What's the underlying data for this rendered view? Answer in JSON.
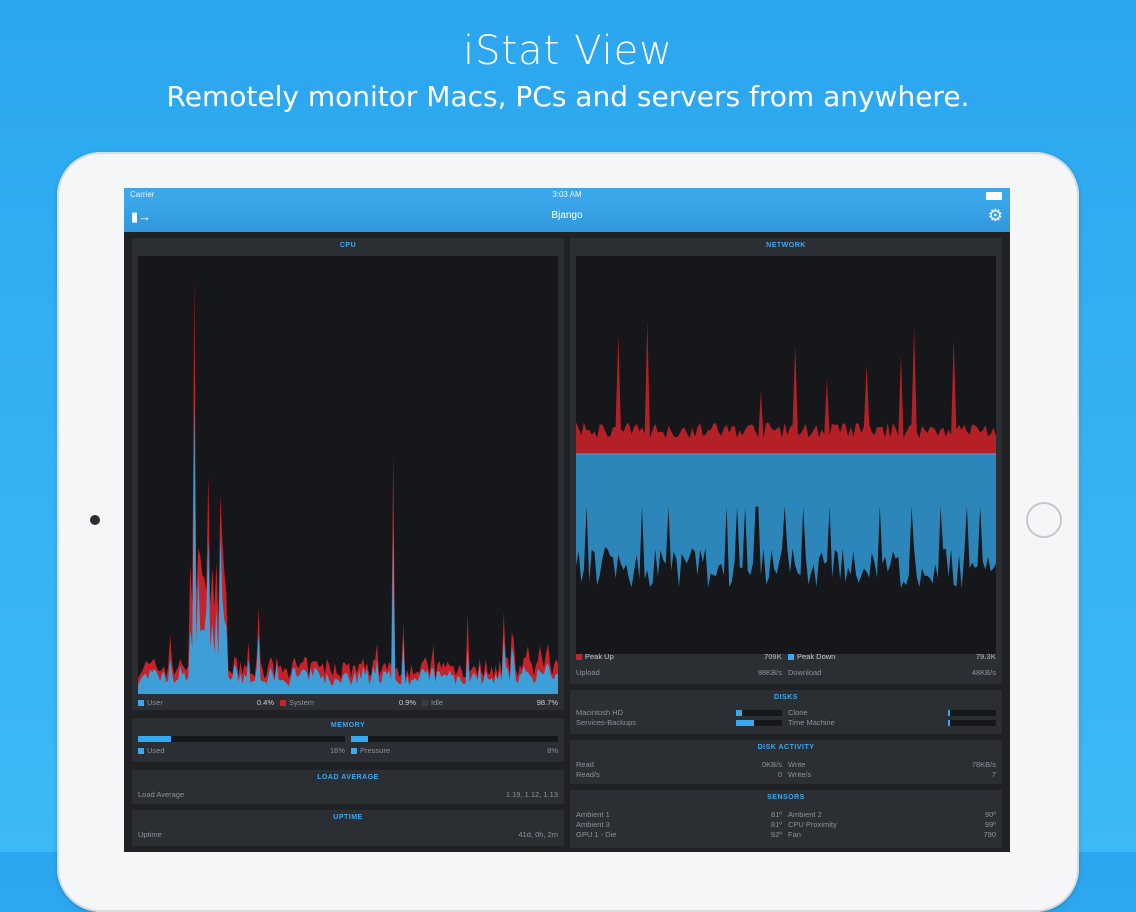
{
  "marketing": {
    "title": "iStat View",
    "subtitle": "Remotely monitor Macs, PCs and servers from anywhere."
  },
  "status_bar": {
    "carrier": "Carrier",
    "time": "3:03 AM"
  },
  "nav": {
    "title": "Bjango",
    "left_icon": "sidebar-toggle-icon",
    "right_icon": "gear-icon"
  },
  "colors": {
    "accent": "#3aa9f0",
    "red": "#c8212a",
    "blue": "#3aa9f0"
  },
  "cpu": {
    "title": "CPU",
    "legend": [
      {
        "label": "User",
        "value": "0.4%",
        "color": "#3aa9f0"
      },
      {
        "label": "System",
        "value": "0.9%",
        "color": "#c8212a"
      },
      {
        "label": "Idle",
        "value": "98.7%",
        "color": "#3a3d42"
      }
    ]
  },
  "memory": {
    "title": "MEMORY",
    "used": {
      "label": "Used",
      "value": "16%",
      "fraction": 0.16
    },
    "pressure": {
      "label": "Pressure",
      "value": "8%",
      "fraction": 0.08
    }
  },
  "load_average": {
    "title": "LOAD AVERAGE",
    "label": "Load Average",
    "value": "1.19, 1.12, 1.13"
  },
  "uptime": {
    "title": "UPTIME",
    "label": "Uptime",
    "value": "41d, 0h, 2m"
  },
  "network": {
    "title": "NETWORK",
    "peak_up_label": "Peak Up",
    "peak_up_value": "709K",
    "peak_down_label": "Peak Down",
    "peak_down_value": "79.3K",
    "upload_label": "Upload",
    "upload_value": "98KB/s",
    "download_label": "Download",
    "download_value": "48KB/s"
  },
  "disks": {
    "title": "DISKS",
    "items": [
      {
        "name": "Macintosh HD",
        "fraction": 0.12
      },
      {
        "name": "Services-Backups",
        "fraction": 0.4
      },
      {
        "name": "Clone",
        "fraction": 0.05
      },
      {
        "name": "Time Machine",
        "fraction": 0.05
      }
    ]
  },
  "disk_activity": {
    "title": "DISK ACTIVITY",
    "read_label": "Read",
    "read_value": "0KB/s",
    "reads_label": "Read/s",
    "reads_value": "0",
    "write_label": "Write",
    "write_value": "78KB/s",
    "writes_label": "Write/s",
    "writes_value": "7"
  },
  "sensors": {
    "title": "SENSORS",
    "left": [
      {
        "label": "Ambient 1",
        "value": "81º"
      },
      {
        "label": "Ambient 3",
        "value": "81º"
      },
      {
        "label": "GPU 1 - Die",
        "value": "92º"
      }
    ],
    "right": [
      {
        "label": "Ambient 2",
        "value": "90º"
      },
      {
        "label": "CPU Proximity",
        "value": "99º"
      },
      {
        "label": "Fan",
        "value": "790"
      }
    ]
  }
}
